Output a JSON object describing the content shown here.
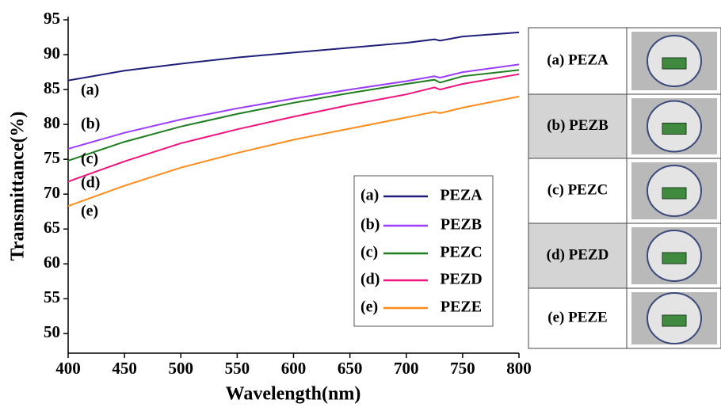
{
  "chart_data": {
    "type": "line",
    "xlabel": "Wavelength(nm)",
    "ylabel": "Transmittance(%)",
    "x": [
      400,
      450,
      500,
      550,
      600,
      650,
      700,
      725,
      730,
      750,
      800
    ],
    "series": [
      {
        "name": "PEZA",
        "label": "(a)",
        "color": "#1f1f7a",
        "values": [
          86.3,
          87.7,
          88.7,
          89.6,
          90.3,
          91.0,
          91.7,
          92.2,
          92.0,
          92.6,
          93.2
        ]
      },
      {
        "name": "PEZB",
        "label": "(b)",
        "color": "#9b3dff",
        "values": [
          76.5,
          78.8,
          80.7,
          82.3,
          83.7,
          85.0,
          86.2,
          86.9,
          86.7,
          87.5,
          88.6
        ]
      },
      {
        "name": "PEZC",
        "label": "(c)",
        "color": "#1e7d1e",
        "values": [
          74.8,
          77.5,
          79.7,
          81.5,
          83.1,
          84.5,
          85.8,
          86.4,
          86.0,
          86.9,
          87.8
        ]
      },
      {
        "name": "PEZD",
        "label": "(d)",
        "color": "#f0147d",
        "values": [
          71.8,
          74.7,
          77.3,
          79.3,
          81.1,
          82.8,
          84.3,
          85.3,
          85.0,
          85.8,
          87.2
        ]
      },
      {
        "name": "PEZE",
        "label": "(e)",
        "color": "#ff8c1a",
        "values": [
          68.3,
          71.2,
          73.8,
          75.9,
          77.8,
          79.4,
          81.0,
          81.8,
          81.6,
          82.4,
          84.0
        ]
      }
    ],
    "xlim": [
      400,
      800
    ],
    "xticks": [
      400,
      450,
      500,
      550,
      600,
      650,
      700,
      750,
      800
    ],
    "ylim": [
      47.2,
      95
    ],
    "yticks": [
      50,
      55,
      60,
      65,
      70,
      75,
      80,
      85,
      90,
      95
    ],
    "grid": false,
    "legend": "lower right"
  },
  "panel": {
    "rows": [
      "(a)  PEZA",
      "(b) PEZB",
      "(c) PEZC",
      "(d) PEZD",
      "(e) PEZE"
    ]
  }
}
